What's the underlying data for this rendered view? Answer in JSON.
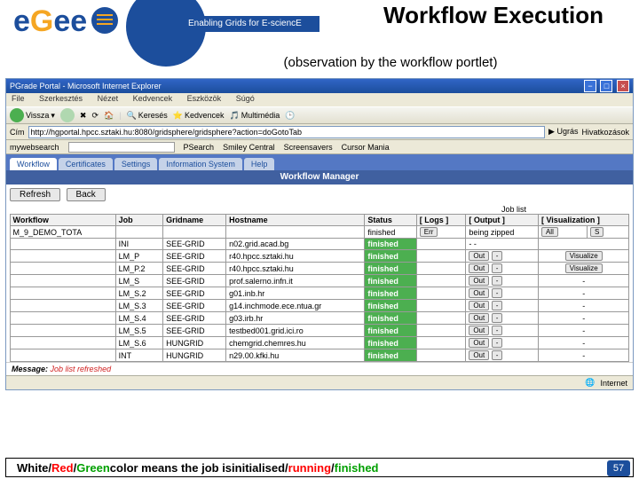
{
  "header": {
    "tagline": "Enabling Grids for E-sciencE",
    "title": "Workflow Execution",
    "subtitle": "(observation by the workflow portlet)"
  },
  "browser": {
    "title": "PGrade Portal - Microsoft Internet Explorer",
    "menu": [
      "File",
      "Szerkesztés",
      "Nézet",
      "Kedvencek",
      "Eszközök",
      "Súgó"
    ],
    "toolbar": {
      "back": "Vissza",
      "search": "Keresés",
      "favs": "Kedvencek",
      "media": "Multimédia"
    },
    "addr_label": "Cím",
    "url": "http://hgportal.hpcc.sztaki.hu:8080/gridsphere/gridsphere?action=doGotoTab",
    "links_label": "Ugrás",
    "links": "Hivatkozások",
    "search_label": "mywebsearch",
    "linkbar": [
      "PSearch",
      "Smiley Central",
      "Screensavers",
      "Cursor Mania"
    ]
  },
  "portal": {
    "tabs": [
      "Workflow",
      "Certificates",
      "Settings",
      "Information System",
      "Help"
    ],
    "portlet_title": "Workflow Manager",
    "buttons": {
      "refresh": "Refresh",
      "back": "Back"
    },
    "joblist_label": "Job list",
    "columns": [
      "Workflow",
      "Job",
      "Gridname",
      "Hostname",
      "Status",
      "[ Logs ]",
      "[ Output ]",
      "[ Visualization ]"
    ],
    "subheader": {
      "workflow": "M_9_DEMO_TOTA",
      "status": "finished",
      "logs": "Err",
      "output": "being zipped",
      "vis_all": "All",
      "vis_s": "S"
    },
    "rows": [
      {
        "job": "INI",
        "grid": "SEE-GRID",
        "host": "n02.grid.acad.bg",
        "status": "finished",
        "out": "- -",
        "vis": ""
      },
      {
        "job": "LM_P",
        "grid": "SEE-GRID",
        "host": "r40.hpcc.sztaki.hu",
        "status": "finished",
        "out": "Out",
        "vis": "Visualize"
      },
      {
        "job": "LM_P.2",
        "grid": "SEE-GRID",
        "host": "r40.hpcc.sztaki.hu",
        "status": "finished",
        "out": "Out",
        "vis": "Visualize"
      },
      {
        "job": "LM_S",
        "grid": "SEE-GRID",
        "host": "prof.salerno.infn.it",
        "status": "finished",
        "out": "Out",
        "vis": "-"
      },
      {
        "job": "LM_S.2",
        "grid": "SEE-GRID",
        "host": "g01.inb.hr",
        "status": "finished",
        "out": "Out",
        "vis": "-"
      },
      {
        "job": "LM_S.3",
        "grid": "SEE-GRID",
        "host": "g14.inchmode.ece.ntua.gr",
        "status": "finished",
        "out": "Out",
        "vis": "-"
      },
      {
        "job": "LM_S.4",
        "grid": "SEE-GRID",
        "host": "g03.irb.hr",
        "status": "finished",
        "out": "Out",
        "vis": "-"
      },
      {
        "job": "LM_S.5",
        "grid": "SEE-GRID",
        "host": "testbed001.grid.ici.ro",
        "status": "finished",
        "out": "Out",
        "vis": "-"
      },
      {
        "job": "LM_S.6",
        "grid": "HUNGRID",
        "host": "chemgrid.chemres.hu",
        "status": "finished",
        "out": "Out",
        "vis": "-"
      },
      {
        "job": "INT",
        "grid": "HUNGRID",
        "host": "n29.00.kfki.hu",
        "status": "finished",
        "out": "Out",
        "vis": "-"
      }
    ],
    "message_label": "Message:",
    "message": "Job list refreshed",
    "status_zone": "Internet"
  },
  "legend": {
    "prefix_white": "White",
    "prefix_red": "Red",
    "prefix_green": "Green",
    "mid": " color means the job is ",
    "suffix_init": "initialised",
    "suffix_run": "running",
    "suffix_fin": "finished"
  },
  "colors": {
    "red": "#ff0000",
    "green": "#00a000",
    "status_green": "#4caf50"
  },
  "page_number": "57"
}
